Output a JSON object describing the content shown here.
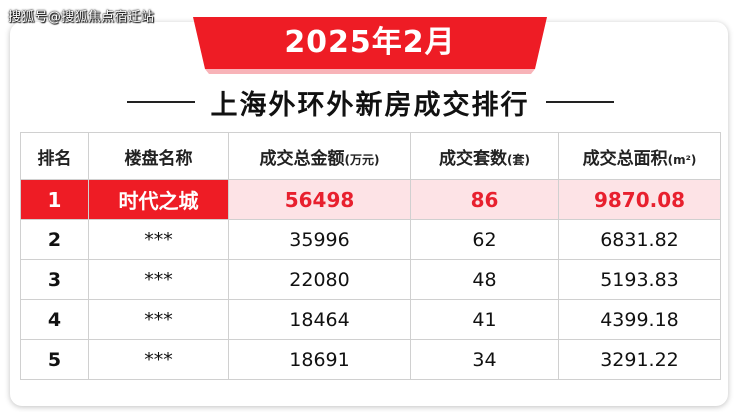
{
  "watermark": "搜狐号@搜狐焦点宿迁站",
  "banner": {
    "date": "2025年2月",
    "color": "#ee1c25"
  },
  "title": "上海外环外新房成交排行",
  "table": {
    "headers": [
      {
        "label": "排名",
        "unit": ""
      },
      {
        "label": "楼盘名称",
        "unit": ""
      },
      {
        "label": "成交总金额",
        "unit": "(万元)"
      },
      {
        "label": "成交套数",
        "unit": "(套)"
      },
      {
        "label": "成交总面积",
        "unit": "(m²)"
      }
    ],
    "rows": [
      {
        "rank": "1",
        "name": "时代之城",
        "amount": "56498",
        "units": "86",
        "area": "9870.08"
      },
      {
        "rank": "2",
        "name": "***",
        "amount": "35996",
        "units": "62",
        "area": "6831.82"
      },
      {
        "rank": "3",
        "name": "***",
        "amount": "22080",
        "units": "48",
        "area": "5193.83"
      },
      {
        "rank": "4",
        "name": "***",
        "amount": "18464",
        "units": "41",
        "area": "4399.18"
      },
      {
        "rank": "5",
        "name": "***",
        "amount": "18691",
        "units": "34",
        "area": "3291.22"
      }
    ],
    "highlight_color": "#fde3e6"
  }
}
